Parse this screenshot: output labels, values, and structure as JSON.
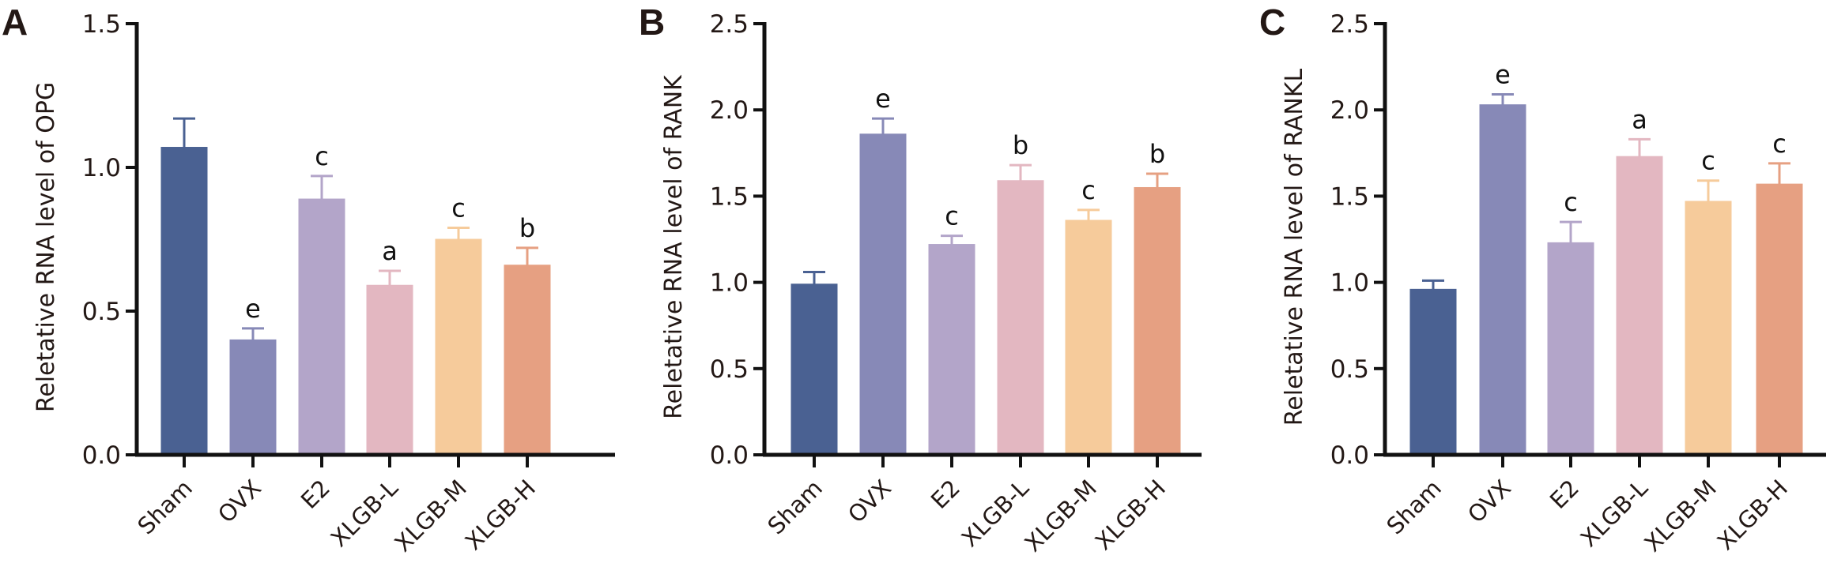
{
  "colors": [
    "#4a6192",
    "#8789b7",
    "#b3a5c9",
    "#e3b7c1",
    "#f6cb9b",
    "#e6a082"
  ],
  "chart_data": [
    {
      "panel": "A",
      "type": "bar",
      "ylabel": "Reletative RNA level of OPG",
      "categories": [
        "Sham",
        "OVX",
        "E2",
        "XLGB-L",
        "XLGB-M",
        "XLGB-H"
      ],
      "values": [
        1.07,
        0.4,
        0.89,
        0.59,
        0.75,
        0.66
      ],
      "error_upper": [
        1.17,
        0.44,
        0.97,
        0.64,
        0.79,
        0.72
      ],
      "significance": [
        "",
        "e",
        "c",
        "a",
        "c",
        "b"
      ],
      "ylim": [
        0,
        1.5
      ],
      "yticks": [
        "0.0",
        "0.5",
        "1.0",
        "1.5"
      ],
      "ytick_values": [
        0,
        0.5,
        1.0,
        1.5
      ],
      "grid": false
    },
    {
      "panel": "B",
      "type": "bar",
      "ylabel": "Reletative RNA level of RANK",
      "categories": [
        "Sham",
        "OVX",
        "E2",
        "XLGB-L",
        "XLGB-M",
        "XLGB-H"
      ],
      "values": [
        0.99,
        1.86,
        1.22,
        1.59,
        1.36,
        1.55
      ],
      "error_upper": [
        1.06,
        1.95,
        1.27,
        1.68,
        1.42,
        1.63
      ],
      "significance": [
        "",
        "e",
        "c",
        "b",
        "c",
        "b"
      ],
      "ylim": [
        0,
        2.5
      ],
      "yticks": [
        "0.0",
        "0.5",
        "1.0",
        "1.5",
        "2.0",
        "2.5"
      ],
      "ytick_values": [
        0,
        0.5,
        1.0,
        1.5,
        2.0,
        2.5
      ],
      "grid": false
    },
    {
      "panel": "C",
      "type": "bar",
      "ylabel": "Reletative RNA level of RANKL",
      "categories": [
        "Sham",
        "OVX",
        "E2",
        "XLGB-L",
        "XLGB-M",
        "XLGB-H"
      ],
      "values": [
        0.96,
        2.03,
        1.23,
        1.73,
        1.47,
        1.57
      ],
      "error_upper": [
        1.01,
        2.09,
        1.35,
        1.83,
        1.59,
        1.69
      ],
      "significance": [
        "",
        "e",
        "c",
        "a",
        "c",
        "c"
      ],
      "ylim": [
        0,
        2.5
      ],
      "yticks": [
        "0.0",
        "0.5",
        "1.0",
        "1.5",
        "2.0",
        "2.5"
      ],
      "ytick_values": [
        0,
        0.5,
        1.0,
        1.5,
        2.0,
        2.5
      ],
      "grid": false
    }
  ]
}
